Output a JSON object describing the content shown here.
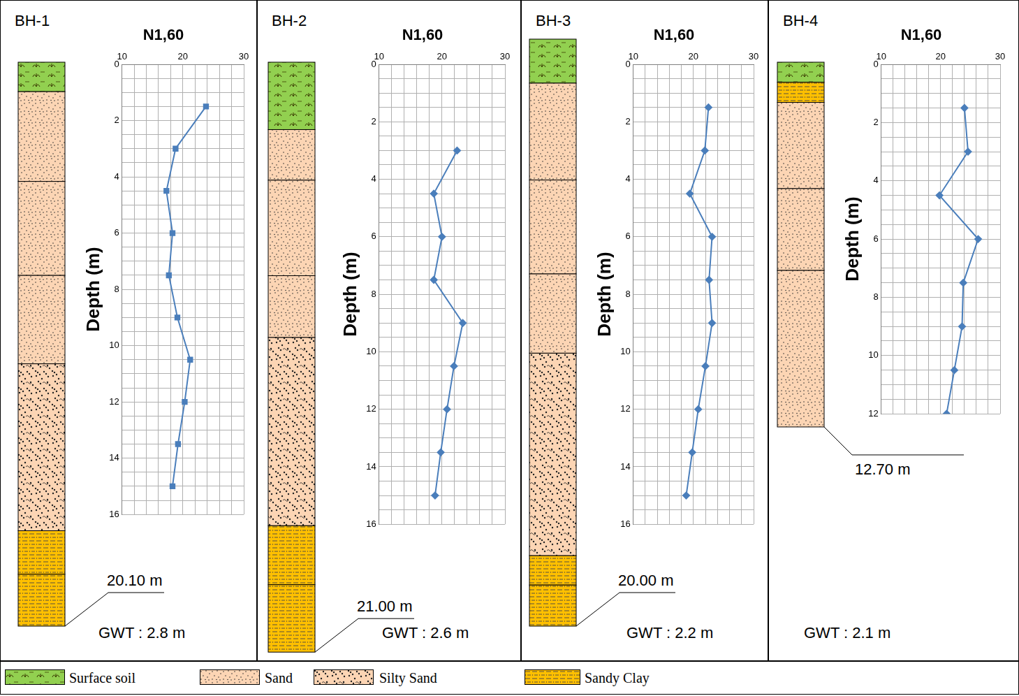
{
  "chart_data": [
    {
      "type": "line",
      "title": "N1,60",
      "y_label": "Depth (m)",
      "x": [
        23.8,
        18.8,
        17.3,
        18.3,
        17.7,
        19.1,
        21.2,
        20.3,
        19.2,
        18.3
      ],
      "y": [
        1.5,
        3,
        4.5,
        6,
        7.5,
        9,
        10.5,
        12,
        13.5,
        15
      ],
      "xlim": [
        10,
        30
      ],
      "xticks": [
        10,
        20,
        30
      ],
      "ylim": [
        0,
        16
      ],
      "yticks": [
        0,
        2,
        4,
        6,
        8,
        10,
        12,
        14,
        16
      ],
      "grid": true,
      "color": "#4a7ebb",
      "marker": "square",
      "line_style": "solid"
    },
    {
      "type": "line",
      "title": "N1,60",
      "y_label": "Depth (m)",
      "x": [
        22.4,
        18.7,
        20.0,
        18.7,
        23.3,
        21.9,
        20.8,
        19.8,
        18.9
      ],
      "y": [
        3,
        4.5,
        6,
        7.5,
        9,
        10.5,
        12,
        13.5,
        15
      ],
      "xlim": [
        10,
        30
      ],
      "xticks": [
        10,
        20,
        30
      ],
      "ylim": [
        0,
        16
      ],
      "yticks": [
        0,
        2,
        4,
        6,
        8,
        10,
        12,
        14,
        16
      ],
      "grid": true,
      "color": "#4a7ebb",
      "marker": "diamond",
      "line_style": "solid"
    },
    {
      "type": "line",
      "title": "N1,60",
      "y_label": "Depth (m)",
      "x": [
        22.5,
        21.9,
        19.4,
        23.1,
        22.6,
        23.1,
        22.0,
        20.8,
        19.8,
        18.8
      ],
      "y": [
        1.5,
        3,
        4.5,
        6,
        7.5,
        9,
        10.5,
        12,
        13.5,
        15
      ],
      "xlim": [
        10,
        30
      ],
      "xticks": [
        10,
        20,
        30
      ],
      "ylim": [
        0,
        16
      ],
      "yticks": [
        0,
        2,
        4,
        6,
        8,
        10,
        12,
        14,
        16
      ],
      "grid": true,
      "color": "#4a7ebb",
      "marker": "diamond",
      "line_style": "solid"
    },
    {
      "type": "line",
      "title": "N1,60",
      "y_label": "Depth (m)",
      "x": [
        24.0,
        24.6,
        19.8,
        26.3,
        23.8,
        23.6,
        22.3,
        21.0
      ],
      "y": [
        1.5,
        3,
        4.5,
        6,
        7.5,
        9,
        10.5,
        12
      ],
      "xlim": [
        10,
        30
      ],
      "xticks": [
        10,
        20,
        30
      ],
      "ylim": [
        0,
        12
      ],
      "yticks": [
        0,
        2,
        4,
        6,
        8,
        10,
        12
      ],
      "grid": true,
      "color": "#4a7ebb",
      "marker": "diamond",
      "line_style": "solid"
    }
  ],
  "boreholes": [
    {
      "name": "BH-1",
      "bottom_label": "20.10 m",
      "gwt": "GWT : 2.8 m",
      "layers": [
        {
          "soil": "Surface soil",
          "top": 0,
          "bottom": 1.05
        },
        {
          "soil": "Sand",
          "top": 1.05,
          "bottom": 4.25
        },
        {
          "soil": "Sand",
          "top": 4.25,
          "bottom": 7.6
        },
        {
          "soil": "Sand",
          "top": 7.6,
          "bottom": 10.75
        },
        {
          "soil": "Silty Sand",
          "top": 10.75,
          "bottom": 16.7
        },
        {
          "soil": "Sandy Clay",
          "top": 16.7,
          "bottom": 18.25
        },
        {
          "soil": "Sandy Clay",
          "top": 18.25,
          "bottom": 20.1
        }
      ]
    },
    {
      "name": "BH-2",
      "bottom_label": "21.00 m",
      "gwt": "GWT : 2.6 m",
      "layers": [
        {
          "soil": "Surface soil",
          "top": 0,
          "bottom": 2.4
        },
        {
          "soil": "Sand",
          "top": 2.4,
          "bottom": 4.2
        },
        {
          "soil": "Sand",
          "top": 4.2,
          "bottom": 7.6
        },
        {
          "soil": "Sand",
          "top": 7.6,
          "bottom": 9.8
        },
        {
          "soil": "Silty Sand",
          "top": 9.8,
          "bottom": 16.5
        },
        {
          "soil": "Sandy Clay",
          "top": 16.5,
          "bottom": 18.6
        },
        {
          "soil": "Sandy Clay",
          "top": 18.6,
          "bottom": 21.0
        }
      ]
    },
    {
      "name": "BH-3",
      "bottom_label": "20.00 m",
      "gwt": "GWT : 2.2 m",
      "layers": [
        {
          "soil": "Surface soil",
          "top": 0,
          "bottom": 1.5
        },
        {
          "soil": "Sand",
          "top": 1.5,
          "bottom": 4.8
        },
        {
          "soil": "Sand",
          "top": 4.8,
          "bottom": 8.0
        },
        {
          "soil": "Sand",
          "top": 8.0,
          "bottom": 10.7
        },
        {
          "soil": "Silty Sand",
          "top": 10.7,
          "bottom": 17.6
        },
        {
          "soil": "Sandy Clay",
          "top": 17.6,
          "bottom": 18.6
        },
        {
          "soil": "Sandy Clay",
          "top": 18.6,
          "bottom": 20.0
        }
      ]
    },
    {
      "name": "BH-4",
      "bottom_label": "12.70 m",
      "gwt": "GWT : 2.1 m",
      "layers": [
        {
          "soil": "Surface soil",
          "top": 0,
          "bottom": 0.7
        },
        {
          "soil": "Sandy Clay",
          "top": 0.7,
          "bottom": 1.4
        },
        {
          "soil": "Sand",
          "top": 1.4,
          "bottom": 4.4
        },
        {
          "soil": "Sand",
          "top": 4.4,
          "bottom": 7.25
        },
        {
          "soil": "Sand",
          "top": 7.25,
          "bottom": 12.7
        }
      ]
    }
  ],
  "soil_legend": [
    "Surface soil",
    "Sand",
    "Silty Sand",
    "Sandy Clay"
  ]
}
